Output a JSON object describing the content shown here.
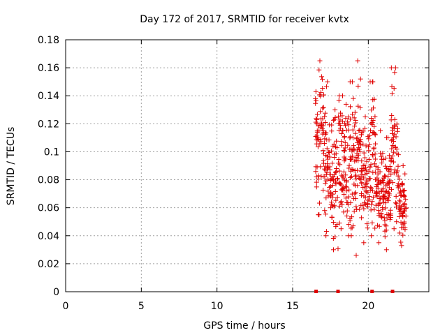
{
  "chart_data": {
    "type": "scatter",
    "title": "Day 172 of 2017, SRMTID for receiver kvtx",
    "xlabel": "GPS time / hours",
    "ylabel": "SRMTID / TECUs",
    "xlim": [
      0,
      24
    ],
    "ylim": [
      0,
      0.18
    ],
    "xticks": [
      "0",
      "5",
      "10",
      "15",
      "20"
    ],
    "yticks": [
      "0",
      "0.02",
      "0.04",
      "0.06",
      "0.08",
      "0.1",
      "0.12",
      "0.14",
      "0.16",
      "0.18"
    ],
    "grid": true,
    "marker": "plus",
    "color": "#e00000",
    "zero_markers_x": [
      16.55,
      18.0,
      20.25,
      21.6
    ],
    "series": [
      {
        "clusters": [
          {
            "x": [
              16.5,
              17.0
            ],
            "y": [
              0.055,
              0.165
            ]
          },
          {
            "x": [
              17.0,
              17.5
            ],
            "y": [
              0.04,
              0.15
            ]
          },
          {
            "x": [
              17.5,
              18.0
            ],
            "y": [
              0.03,
              0.13
            ]
          },
          {
            "x": [
              18.0,
              18.5
            ],
            "y": [
              0.045,
              0.14
            ]
          },
          {
            "x": [
              18.5,
              19.0
            ],
            "y": [
              0.04,
              0.15
            ]
          },
          {
            "x": [
              19.0,
              19.5
            ],
            "y": [
              0.026,
              0.165
            ]
          },
          {
            "x": [
              19.5,
              20.0
            ],
            "y": [
              0.035,
              0.125
            ]
          },
          {
            "x": [
              20.0,
              20.5
            ],
            "y": [
              0.04,
              0.15
            ]
          },
          {
            "x": [
              20.5,
              21.0
            ],
            "y": [
              0.035,
              0.115
            ]
          },
          {
            "x": [
              21.0,
              21.5
            ],
            "y": [
              0.03,
              0.11
            ]
          },
          {
            "x": [
              21.5,
              22.0
            ],
            "y": [
              0.045,
              0.16
            ]
          },
          {
            "x": [
              22.0,
              22.5
            ],
            "y": [
              0.033,
              0.09
            ]
          }
        ],
        "points_per_cluster": 55
      }
    ]
  }
}
